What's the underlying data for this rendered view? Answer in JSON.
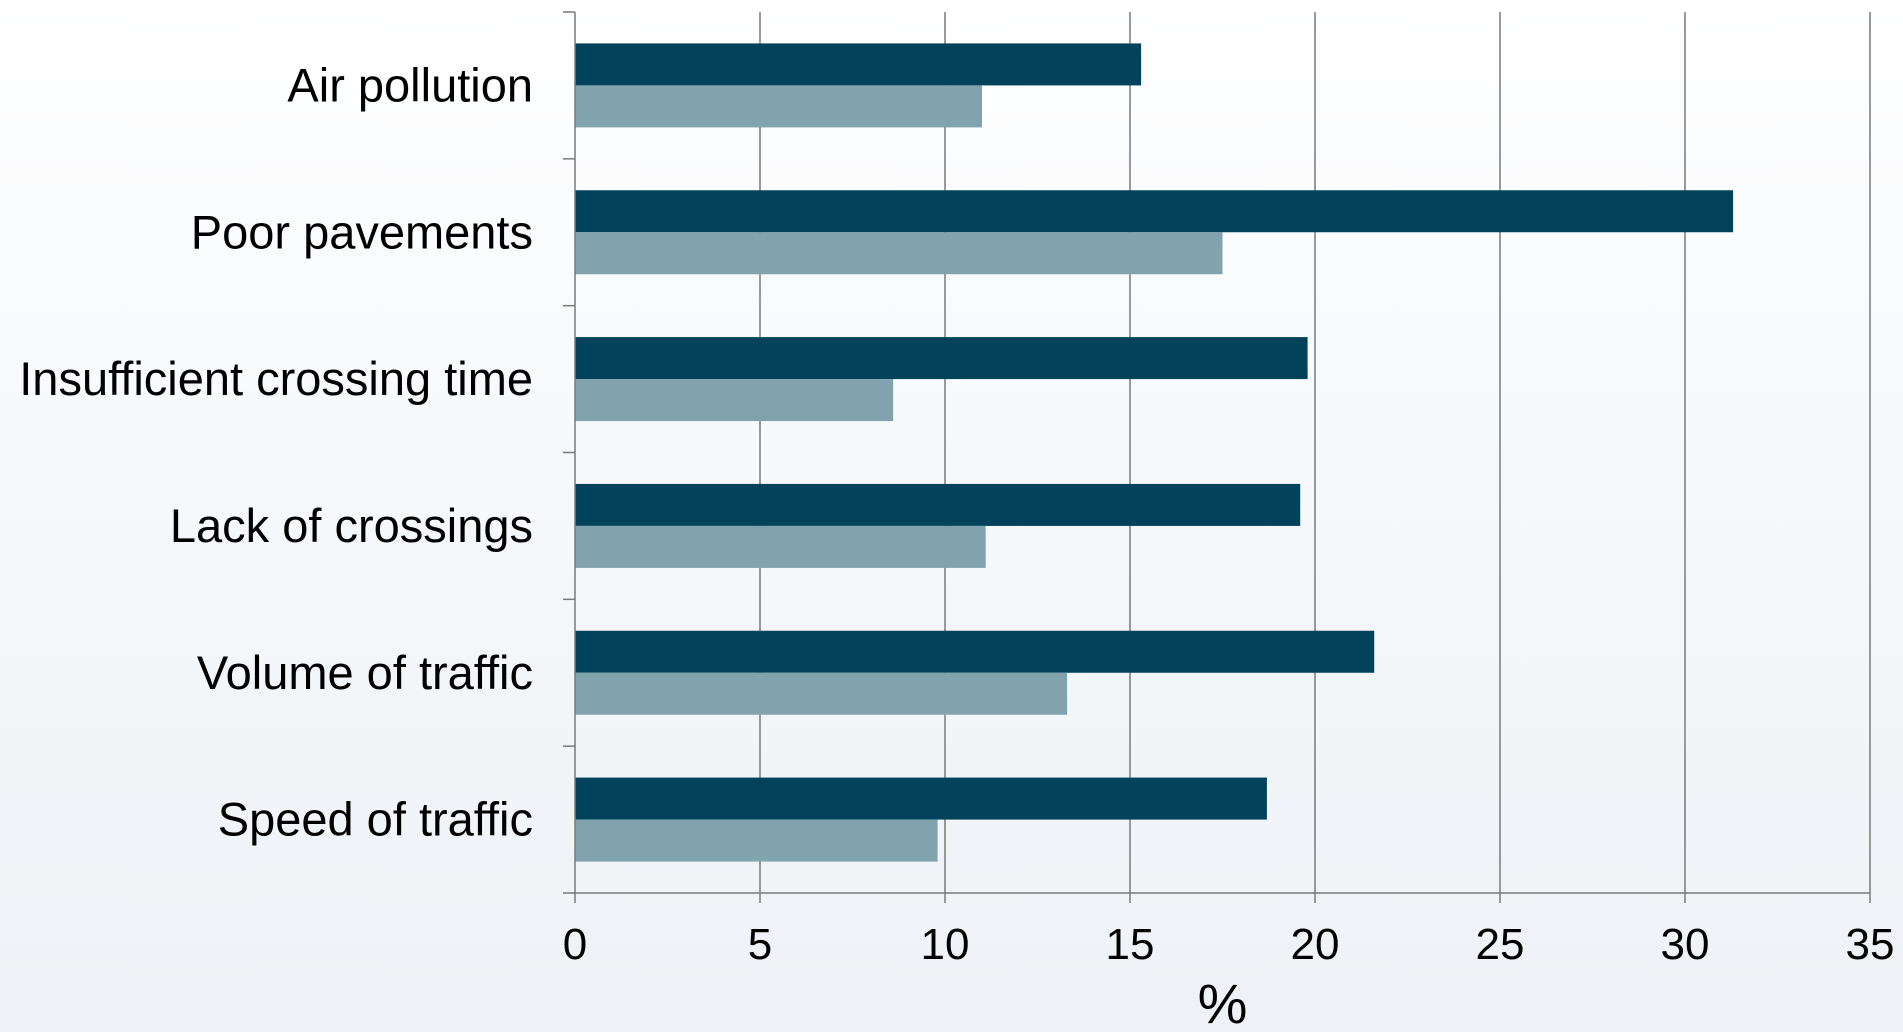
{
  "chart_data": {
    "type": "bar",
    "orientation": "horizontal",
    "categories": [
      "Air pollution",
      "Poor pavements",
      "Insufficient crossing time",
      "Lack of crossings",
      "Volume of traffic",
      "Speed of traffic"
    ],
    "series": [
      {
        "values": [
          15.3,
          31.3,
          19.8,
          19.6,
          21.6,
          18.7
        ],
        "color": "#02425a"
      },
      {
        "values": [
          11.0,
          17.5,
          8.6,
          11.1,
          13.3,
          9.8
        ],
        "color": "#81a3ad"
      }
    ],
    "xlabel": "%",
    "xlim": [
      0,
      35
    ],
    "xticks": [
      "0",
      "5",
      "10",
      "15",
      "20",
      "25",
      "30",
      "35"
    ],
    "grid": true,
    "gridline_color": "#7a7a7a"
  }
}
